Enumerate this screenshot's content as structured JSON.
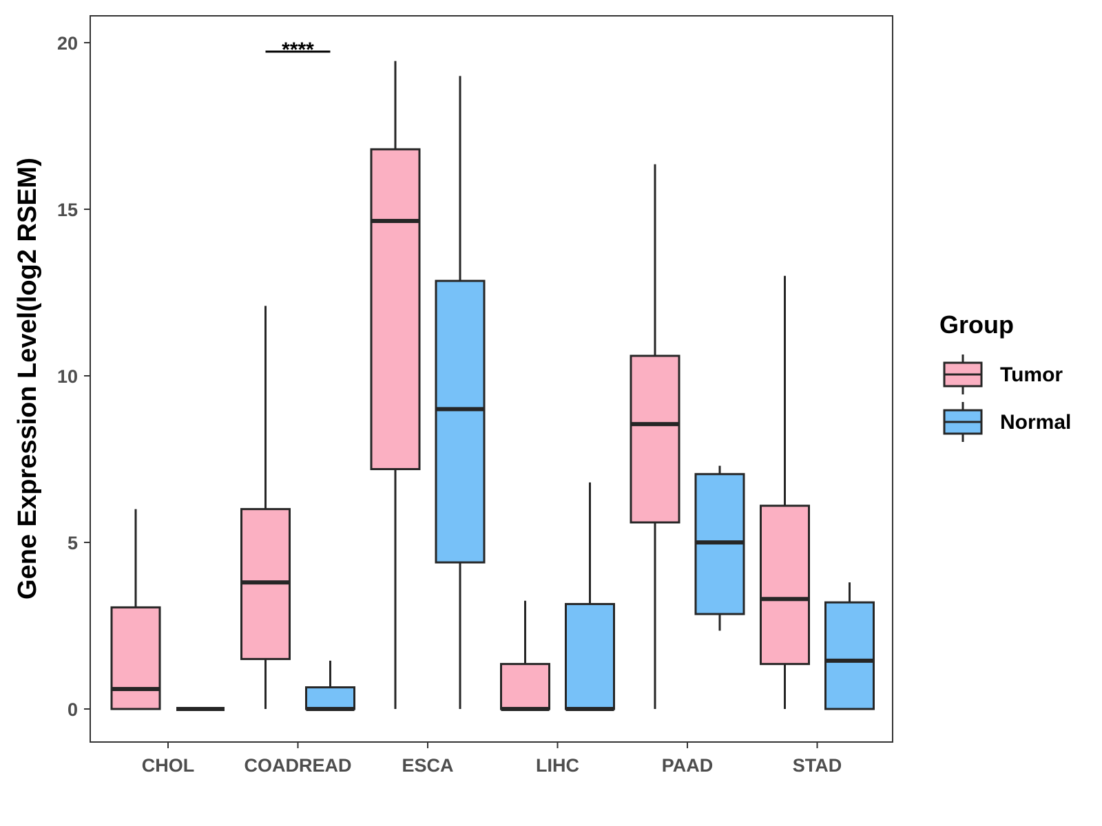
{
  "chart_data": {
    "type": "boxplot",
    "ylabel": "Gene Expression Level(log2 RSEM)",
    "xlabel": "",
    "ylim": [
      -1,
      21
    ],
    "yticks": [
      0,
      5,
      10,
      15,
      20
    ],
    "categories": [
      "CHOL",
      "COADREAD",
      "ESCA",
      "LIHC",
      "PAAD",
      "STAD"
    ],
    "legend": {
      "title": "Group",
      "position": "right",
      "entries": [
        {
          "name": "Tumor",
          "color": "#fbb0c2"
        },
        {
          "name": "Normal",
          "color": "#77c1f8"
        }
      ]
    },
    "series": [
      {
        "name": "Tumor",
        "color": "#fbb0c2",
        "boxes": [
          {
            "min": 0,
            "q1": 0,
            "median": 0.6,
            "q3": 3.05,
            "max": 6.0
          },
          {
            "min": 0,
            "q1": 1.5,
            "median": 3.8,
            "q3": 6.0,
            "max": 12.1
          },
          {
            "min": 0,
            "q1": 7.2,
            "median": 14.65,
            "q3": 16.8,
            "max": 19.45
          },
          {
            "min": 0,
            "q1": 0,
            "median": 0,
            "q3": 1.35,
            "max": 3.25
          },
          {
            "min": 0,
            "q1": 5.6,
            "median": 8.55,
            "q3": 10.6,
            "max": 16.35
          },
          {
            "min": 0,
            "q1": 1.35,
            "median": 3.3,
            "q3": 6.1,
            "max": 13.0
          }
        ]
      },
      {
        "name": "Normal",
        "color": "#77c1f8",
        "boxes": [
          {
            "min": 0,
            "q1": 0,
            "median": 0,
            "q3": 0,
            "max": 0
          },
          {
            "min": 0,
            "q1": 0,
            "median": 0,
            "q3": 0.65,
            "max": 1.45
          },
          {
            "min": 0,
            "q1": 4.4,
            "median": 9.0,
            "q3": 12.85,
            "max": 19.0
          },
          {
            "min": 0,
            "q1": 0,
            "median": 0,
            "q3": 3.15,
            "max": 6.8
          },
          {
            "min": 2.35,
            "q1": 2.85,
            "median": 5.0,
            "q3": 7.05,
            "max": 7.3
          },
          {
            "min": 0,
            "q1": 0,
            "median": 1.45,
            "q3": 3.2,
            "max": 3.8
          }
        ]
      }
    ],
    "annotations": [
      {
        "category": "COADREAD",
        "text": "****",
        "y": 20
      }
    ]
  }
}
